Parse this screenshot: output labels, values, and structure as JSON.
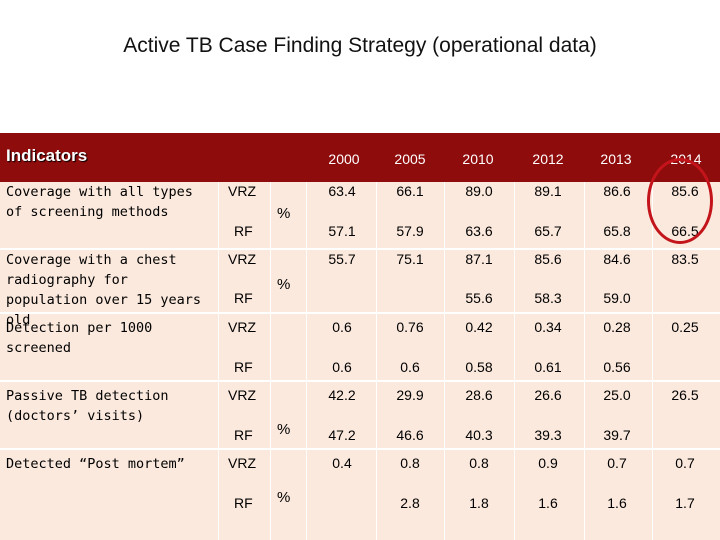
{
  "title": "Active TB Case Finding Strategy (operational data)",
  "header": {
    "indicators_label": "Indicators",
    "years": [
      "2000",
      "2005",
      "2010",
      "2012",
      "2013",
      "2014"
    ]
  },
  "rows": [
    {
      "indicator": "Coverage with all types of screening methods",
      "unit": "%",
      "vrz": {
        "country": "VRZ",
        "values": [
          "63.4",
          "66.1",
          "89.0",
          "89.1",
          "86.6",
          "85.6"
        ]
      },
      "rf": {
        "country": "RF",
        "values": [
          "57.1",
          "57.9",
          "63.6",
          "65.7",
          "65.8",
          "66.5"
        ]
      }
    },
    {
      "indicator": "Coverage with a chest radiography for population over 15 years old",
      "unit": "%",
      "vrz": {
        "country": "VRZ",
        "values": [
          "55.7",
          "75.1",
          "87.1",
          "85.6",
          "84.6",
          "83.5"
        ]
      },
      "rf": {
        "country": "RF",
        "values": [
          "",
          "",
          "55.6",
          "58.3",
          "59.0",
          ""
        ]
      }
    },
    {
      "indicator": "Detection per 1000 screened",
      "unit": "",
      "vrz": {
        "country": "VRZ",
        "values": [
          "0.6",
          "0.76",
          "0.42",
          "0.34",
          "0.28",
          "0.25"
        ]
      },
      "rf": {
        "country": "RF",
        "values": [
          "0.6",
          "0.6",
          "0.58",
          "0.61",
          "0.56",
          ""
        ]
      }
    },
    {
      "indicator": "Passive TB detection (doctors’ visits)",
      "unit": "%",
      "vrz": {
        "country": "VRZ",
        "values": [
          "42.2",
          "29.9",
          "28.6",
          "26.6",
          "25.0",
          "26.5"
        ]
      },
      "rf": {
        "country": "RF",
        "values": [
          "47.2",
          "46.6",
          "40.3",
          "39.3",
          "39.7",
          ""
        ]
      }
    },
    {
      "indicator": "Detected “Post mortem”",
      "unit": "%",
      "vrz": {
        "country": "VRZ",
        "values": [
          "0.4",
          "0.8",
          "0.8",
          "0.9",
          "0.7",
          "0.7"
        ]
      },
      "rf": {
        "country": "RF",
        "values": [
          "",
          "2.8",
          "1.8",
          "1.6",
          "1.6",
          "1.7"
        ]
      }
    }
  ],
  "colors": {
    "header_bg": "#8f0c0c",
    "cell_bg": "#fbe9dd",
    "highlight_circle": "#c4141b"
  }
}
